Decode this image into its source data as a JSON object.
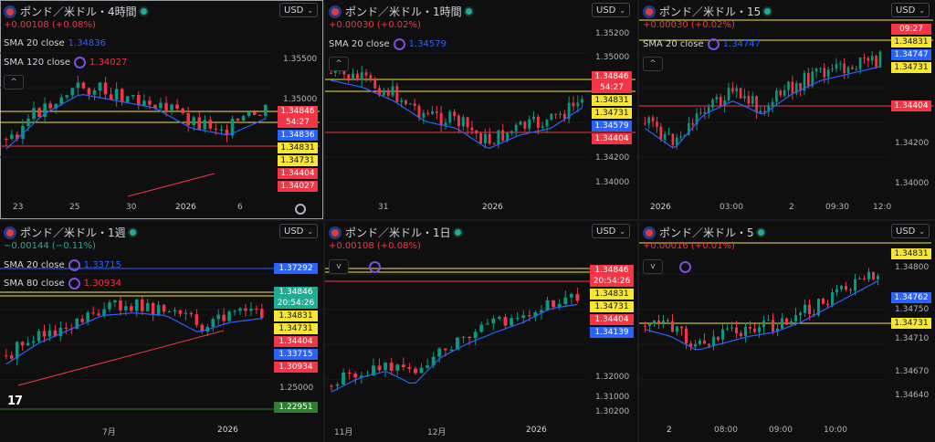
{
  "colors": {
    "up": "#089981",
    "down": "#f23645",
    "sma_blue": "#2962ff",
    "line_yellow": "#f7e733",
    "line_red": "#f23645",
    "grid": "#1a1a1a"
  },
  "panels": [
    {
      "id": "p1",
      "title": "ポンド／米ドル・4時間",
      "change": "+0.00108 (+0.08%)",
      "change_dir": "up",
      "currency": "USD",
      "collapse": "^",
      "indicators": [
        {
          "name": "SMA 20 close",
          "value": "1.34836",
          "value_color": "blue"
        },
        {
          "name": "SMA 120 close",
          "value": "1.34027",
          "value_color": "red"
        }
      ],
      "price_ticks": [
        "1.35500",
        "1.35000"
      ],
      "time_ticks": [
        "23",
        "25",
        "30",
        "2026",
        "6"
      ],
      "tags": [
        {
          "text": "1.34846",
          "sub": "54:27",
          "c": "red"
        },
        {
          "text": "1.34836",
          "c": "blue"
        },
        {
          "text": "1.34831",
          "c": "yellow"
        },
        {
          "text": "1.34731",
          "c": "yellow"
        },
        {
          "text": "1.34404",
          "c": "red"
        },
        {
          "text": "1.34027",
          "c": "red"
        }
      ]
    },
    {
      "id": "p2",
      "title": "ポンド／米ドル・1時間",
      "change": "+0.00030 (+0.02%)",
      "change_dir": "up",
      "currency": "USD",
      "collapse": "^",
      "indicators": [
        {
          "name": "SMA 20 close",
          "value": "1.34579",
          "value_color": "blue"
        }
      ],
      "price_ticks": [
        "1.35200",
        "1.35000",
        "1.34200",
        "1.34000"
      ],
      "time_ticks": [
        "31",
        "2026"
      ],
      "tags": [
        {
          "text": "1.34846",
          "sub": "54:27",
          "c": "red"
        },
        {
          "text": "1.34831",
          "c": "yellow"
        },
        {
          "text": "1.34731",
          "c": "yellow"
        },
        {
          "text": "1.34579",
          "c": "blue"
        },
        {
          "text": "1.34404",
          "c": "red"
        }
      ]
    },
    {
      "id": "p3",
      "title": "ポンド／米ドル・15",
      "change": "+0.00030 (+0.02%)",
      "change_dir": "up",
      "currency": "USD",
      "collapse": "^",
      "indicators": [
        {
          "name": "SMA 20 close",
          "value": "1.34747",
          "value_color": "blue"
        }
      ],
      "price_ticks": [
        "1.34200",
        "1.34000"
      ],
      "time_ticks": [
        "2026",
        "03:00",
        "2",
        "09:30",
        "12:0"
      ],
      "tags": [
        {
          "text": "09:27",
          "c": "red"
        },
        {
          "text": "1.34831",
          "c": "yellow"
        },
        {
          "text": "1.34747",
          "c": "blue"
        },
        {
          "text": "1.34731",
          "c": "yellow"
        },
        {
          "text": "1.34404",
          "c": "red"
        }
      ]
    },
    {
      "id": "p4",
      "title": "ポンド／米ドル・1週",
      "change": "−0.00144 (−0.11%)",
      "change_dir": "down",
      "currency": "USD",
      "collapse": "",
      "indicators": [
        {
          "name": "SMA 20 close",
          "value": "1.33715",
          "value_color": "blue"
        },
        {
          "name": "SMA 80 close",
          "value": "1.30934",
          "value_color": "red"
        }
      ],
      "price_ticks": [
        "1.25000"
      ],
      "time_ticks": [
        "7月",
        "2026"
      ],
      "tags": [
        {
          "text": "1.37292",
          "c": "blue"
        },
        {
          "text": "1.34846",
          "sub": "20:54:26",
          "c": "green"
        },
        {
          "text": "1.34831",
          "c": "yellow"
        },
        {
          "text": "1.34731",
          "c": "yellow"
        },
        {
          "text": "1.34404",
          "c": "red"
        },
        {
          "text": "1.33715",
          "c": "blue"
        },
        {
          "text": "1.30934",
          "c": "red"
        },
        {
          "text": "1.22951",
          "c": "dgreen"
        }
      ]
    },
    {
      "id": "p5",
      "title": "ポンド／米ドル・1日",
      "change": "+0.00108 (+0.08%)",
      "change_dir": "up",
      "currency": "USD",
      "collapse": "v",
      "indicators": [],
      "price_ticks": [
        "1.32000",
        "1.31000",
        "1.30200"
      ],
      "time_ticks": [
        "11月",
        "12月",
        "2026"
      ],
      "tags": [
        {
          "text": "1.34846",
          "sub": "20:54:26",
          "c": "red"
        },
        {
          "text": "1.34831",
          "c": "yellow"
        },
        {
          "text": "1.34731",
          "c": "yellow"
        },
        {
          "text": "1.34404",
          "c": "red"
        },
        {
          "text": "1.34139",
          "c": "blue"
        }
      ]
    },
    {
      "id": "p6",
      "title": "ポンド／米ドル・5",
      "change": "+0.00016 (+0.01%)",
      "change_dir": "up",
      "currency": "USD",
      "collapse": "v",
      "indicators": [],
      "price_ticks": [
        "1.34800",
        "1.34750",
        "1.34710",
        "1.34670",
        "1.34640"
      ],
      "time_ticks": [
        "2",
        "08:00",
        "09:00",
        "10:00"
      ],
      "tags": [
        {
          "text": "1.34831",
          "c": "yellow"
        },
        {
          "text": "1.34762",
          "c": "blue"
        },
        {
          "text": "1.34731",
          "c": "yellow"
        }
      ]
    }
  ]
}
